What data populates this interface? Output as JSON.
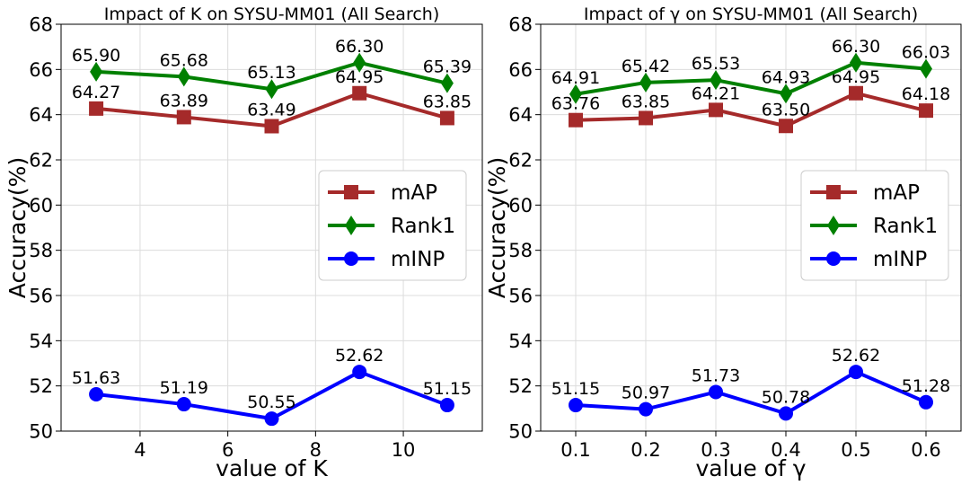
{
  "chart_data": [
    {
      "type": "line",
      "title": "Impact of K on SYSU-MM01 (All Search)",
      "xlabel": "value of K",
      "ylabel": "Accuracy(%)",
      "x": [
        3,
        5,
        7,
        9,
        11
      ],
      "xticks": [
        4,
        6,
        8,
        10
      ],
      "xlim": [
        2.2,
        11.8
      ],
      "ylim": [
        50,
        68
      ],
      "yticks": [
        50,
        52,
        54,
        56,
        58,
        60,
        62,
        64,
        66,
        68
      ],
      "grid": true,
      "legend_position": "center-right",
      "series": [
        {
          "name": "mAP",
          "values": [
            64.27,
            63.89,
            63.49,
            64.95,
            63.85
          ],
          "labels": [
            "64.27",
            "63.89",
            "63.49",
            "64.95",
            "63.85"
          ],
          "color": "#a52a2a",
          "marker": "square"
        },
        {
          "name": "Rank1",
          "values": [
            65.9,
            65.68,
            65.13,
            66.3,
            65.39
          ],
          "labels": [
            "65.90",
            "65.68",
            "65.13",
            "66.30",
            "65.39"
          ],
          "color": "#008000",
          "marker": "diamond"
        },
        {
          "name": "mINP",
          "values": [
            51.63,
            51.19,
            50.55,
            52.62,
            51.15
          ],
          "labels": [
            "51.63",
            "51.19",
            "50.55",
            "52.62",
            "51.15"
          ],
          "color": "#0000ff",
          "marker": "circle"
        }
      ]
    },
    {
      "type": "line",
      "title": "Impact of γ on SYSU-MM01 (All Search)",
      "xlabel": "value of γ",
      "ylabel": "Accuracy(%)",
      "x": [
        0.1,
        0.2,
        0.3,
        0.4,
        0.5,
        0.6
      ],
      "xticks": [
        0.1,
        0.2,
        0.3,
        0.4,
        0.5,
        0.6
      ],
      "xlim": [
        0.05,
        0.65
      ],
      "ylim": [
        50,
        68
      ],
      "yticks": [
        50,
        52,
        54,
        56,
        58,
        60,
        62,
        64,
        66,
        68
      ],
      "grid": true,
      "legend_position": "center-right",
      "series": [
        {
          "name": "mAP",
          "values": [
            63.76,
            63.85,
            64.21,
            63.5,
            64.95,
            64.18
          ],
          "labels": [
            "63.76",
            "63.85",
            "64.21",
            "63.50",
            "64.95",
            "64.18"
          ],
          "color": "#a52a2a",
          "marker": "square"
        },
        {
          "name": "Rank1",
          "values": [
            64.91,
            65.42,
            65.53,
            64.93,
            66.3,
            66.03
          ],
          "labels": [
            "64.91",
            "65.42",
            "65.53",
            "64.93",
            "66.30",
            "66.03"
          ],
          "color": "#008000",
          "marker": "diamond"
        },
        {
          "name": "mINP",
          "values": [
            51.15,
            50.97,
            51.73,
            50.78,
            52.62,
            51.28
          ],
          "labels": [
            "51.15",
            "50.97",
            "51.73",
            "50.78",
            "52.62",
            "51.28"
          ],
          "color": "#0000ff",
          "marker": "circle"
        }
      ]
    }
  ]
}
